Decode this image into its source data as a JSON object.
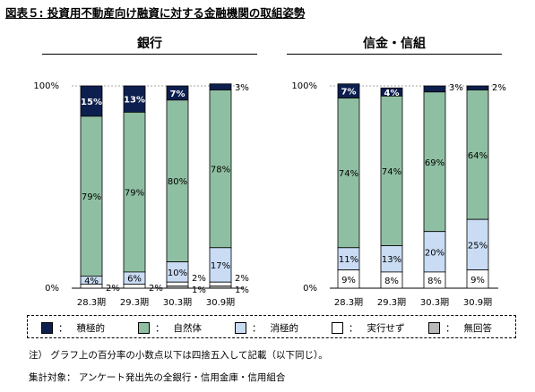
{
  "figure_title": "図表５: 投資用不動産向け融資に対する金融機関の取組姿勢",
  "legend": [
    {
      "label": "積極的",
      "color": "#0d1f4f"
    },
    {
      "label": "自然体",
      "color": "#8fbfa2"
    },
    {
      "label": "消極的",
      "color": "#c9dcf4"
    },
    {
      "label": "実行せず",
      "color": "#ffffff"
    },
    {
      "label": "無回答",
      "color": "#b8b8b8"
    }
  ],
  "legend_separator": "：",
  "notes": {
    "note1": "注） グラフ上の百分率の小数点以下は四捨五入して記載（以下同じ）。",
    "note2": "集計対象： アンケート発出先の全銀行・信用金庫・信用組合"
  },
  "chart_data": [
    {
      "type": "bar",
      "stacked": true,
      "title": "銀行",
      "categories": [
        "28.3期",
        "29.3期",
        "30.3期",
        "30.9期"
      ],
      "ylim": [
        0,
        100
      ],
      "yticks": [
        "0%",
        "100%"
      ],
      "series": [
        {
          "name": "積極的",
          "values": [
            15,
            13,
            7,
            3
          ],
          "labels": [
            "15%",
            "13%",
            "7%",
            "3%"
          ]
        },
        {
          "name": "自然体",
          "values": [
            79,
            79,
            80,
            78
          ],
          "labels": [
            "79%",
            "79%",
            "80%",
            "78%"
          ]
        },
        {
          "name": "消極的",
          "values": [
            4,
            6,
            10,
            17
          ],
          "labels": [
            "4%",
            "6%",
            "10%",
            "17%"
          ]
        },
        {
          "name": "実行せず",
          "values": [
            2,
            2,
            2,
            2
          ],
          "labels": [
            "2%",
            "2%",
            "2%",
            "2%"
          ]
        },
        {
          "name": "無回答",
          "values": [
            0,
            0,
            1,
            1
          ],
          "labels": [
            "",
            "",
            "1%",
            "1%"
          ]
        }
      ]
    },
    {
      "type": "bar",
      "stacked": true,
      "title": "信金・信組",
      "categories": [
        "28.3期",
        "29.3期",
        "30.3期",
        "30.9期"
      ],
      "ylim": [
        0,
        100
      ],
      "yticks": [
        "0%",
        "100%"
      ],
      "series": [
        {
          "name": "積極的",
          "values": [
            7,
            4,
            3,
            2
          ],
          "labels": [
            "7%",
            "4%",
            "3%",
            "2%"
          ]
        },
        {
          "name": "自然体",
          "values": [
            74,
            74,
            69,
            64
          ],
          "labels": [
            "74%",
            "74%",
            "69%",
            "64%"
          ]
        },
        {
          "name": "消極的",
          "values": [
            11,
            13,
            20,
            25
          ],
          "labels": [
            "11%",
            "13%",
            "20%",
            "25%"
          ]
        },
        {
          "name": "実行せず",
          "values": [
            9,
            8,
            8,
            9
          ],
          "labels": [
            "9%",
            "8%",
            "8%",
            "9%"
          ]
        },
        {
          "name": "無回答",
          "values": [
            0,
            0,
            0,
            0
          ],
          "labels": [
            "",
            "",
            "",
            ""
          ]
        }
      ]
    }
  ]
}
